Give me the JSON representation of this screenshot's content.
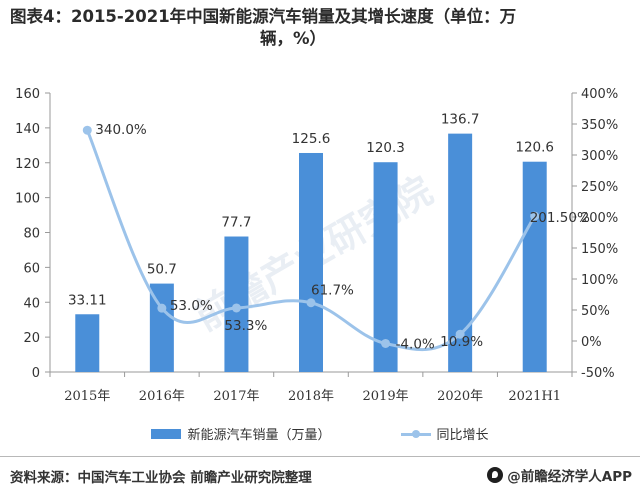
{
  "title": {
    "line1": "图表4：2015-2021年中国新能源汽车销量及其增长速度（单位：万",
    "line2": "辆，%）"
  },
  "chart_data": {
    "type": "bar+line",
    "categories": [
      "2015年",
      "2016年",
      "2017年",
      "2018年",
      "2019年",
      "2020年",
      "2021H1"
    ],
    "series": [
      {
        "name": "新能源汽车销量（万量）",
        "type": "bar",
        "axis": "left",
        "values": [
          33.11,
          50.7,
          77.7,
          125.6,
          120.3,
          136.7,
          120.6
        ],
        "labels": [
          "33.11",
          "50.7",
          "77.7",
          "125.6",
          "120.3",
          "136.7",
          "120.6"
        ],
        "color": "#4a8fd8"
      },
      {
        "name": "同比增长",
        "type": "line",
        "axis": "right",
        "values": [
          340.0,
          53.0,
          53.3,
          61.7,
          -4.0,
          10.9,
          201.5
        ],
        "labels": [
          "340.0%",
          "53.0%",
          "53.3%",
          "61.7%",
          "-4.0%",
          "10.9%",
          "201.50%"
        ],
        "color": "#9cc3ea"
      }
    ],
    "y_left": {
      "min": 0,
      "max": 160,
      "step": 20,
      "ticks": [
        "0",
        "20",
        "40",
        "60",
        "80",
        "100",
        "120",
        "140",
        "160"
      ]
    },
    "y_right": {
      "min": -50,
      "max": 400,
      "step": 50,
      "ticks": [
        "-50%",
        "0%",
        "50%",
        "100%",
        "150%",
        "200%",
        "250%",
        "300%",
        "350%",
        "400%"
      ]
    },
    "legend_position": "bottom",
    "grid": false
  },
  "source": "资料来源：中国汽车工业协会 前瞻产业研究院整理",
  "brand": "@前瞻经济学人APP",
  "watermark": "前瞻产业研究院"
}
